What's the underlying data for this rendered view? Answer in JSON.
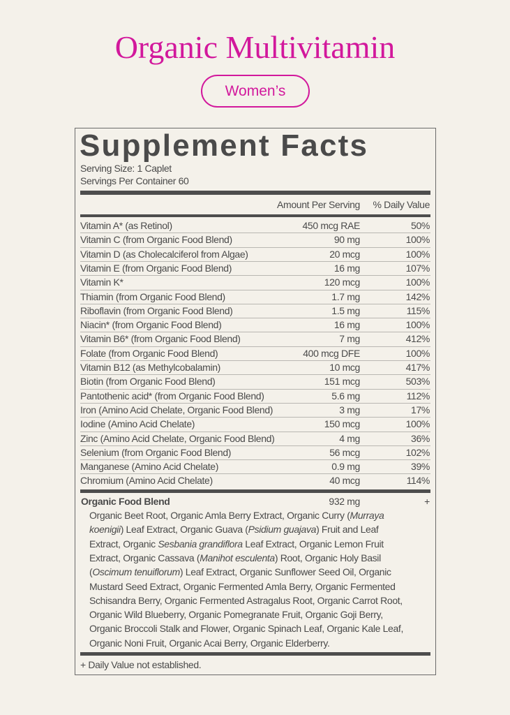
{
  "header": {
    "title": "Organic Multivitamin",
    "badge": "Women’s"
  },
  "facts": {
    "title": "Supplement Facts",
    "serving_size": "Serving Size: 1 Caplet",
    "servings_per_container": "Servings Per Container 60",
    "column_headers": [
      "Amount Per Serving",
      "% Daily Value"
    ],
    "rows": [
      [
        "Vitamin A* (as Retinol)",
        "450 mcg RAE",
        "50%"
      ],
      [
        "Vitamin C (from Organic Food Blend)",
        "90 mg",
        "100%"
      ],
      [
        "Vitamin D (as Cholecalciferol from Algae)",
        "20 mcg",
        "100%"
      ],
      [
        "Vitamin E (from Organic Food Blend)",
        "16 mg",
        "107%"
      ],
      [
        "Vitamin K*",
        "120 mcg",
        "100%"
      ],
      [
        "Thiamin (from Organic Food Blend)",
        "1.7 mg",
        "142%"
      ],
      [
        "Riboflavin (from Organic Food Blend)",
        "1.5 mg",
        "115%"
      ],
      [
        "Niacin* (from Organic Food Blend)",
        "16 mg",
        "100%"
      ],
      [
        "Vitamin B6* (from Organic Food Blend)",
        "7 mg",
        "412%"
      ],
      [
        "Folate (from Organic Food Blend)",
        "400 mcg DFE",
        "100%"
      ],
      [
        "Vitamin B12 (as Methylcobalamin)",
        "10 mcg",
        "417%"
      ],
      [
        "Biotin (from Organic Food Blend)",
        "151 mcg",
        "503%"
      ],
      [
        "Pantothenic acid* (from Organic Food Blend)",
        "5.6 mg",
        "112%"
      ],
      [
        "Iron (Amino Acid Chelate, Organic Food Blend)",
        "3 mg",
        "17%"
      ],
      [
        "Iodine (Amino Acid Chelate)",
        "150 mcg",
        "100%"
      ],
      [
        "Zinc (Amino Acid Chelate, Organic Food Blend)",
        "4 mg",
        "36%"
      ],
      [
        "Selenium (from Organic Food Blend)",
        "56 mcg",
        "102%"
      ],
      [
        "Manganese (Amino Acid Chelate)",
        "0.9 mg",
        "39%"
      ],
      [
        "Chromium (Amino Acid Chelate)",
        "40 mcg",
        "114%"
      ]
    ],
    "blend": {
      "name": "Organic Food Blend",
      "amount": "932 mg",
      "daily_value": "+",
      "lines": [
        [
          {
            "text": "Organic Beet Root, Organic Amla Berry Extract, Organic Curry ("
          },
          {
            "text": "Murraya",
            "italic": true
          }
        ],
        [
          {
            "text": "koenigii",
            "italic": true
          },
          {
            "text": ") Leaf Extract, Organic Guava ("
          },
          {
            "text": "Psidium guajava",
            "italic": true
          },
          {
            "text": ") Fruit and Leaf"
          }
        ],
        [
          {
            "text": "Extract, Organic "
          },
          {
            "text": "Sesbania grandiflora",
            "italic": true
          },
          {
            "text": " Leaf Extract, Organic Lemon Fruit"
          }
        ],
        [
          {
            "text": "Extract, Organic Cassava ("
          },
          {
            "text": "Manihot esculenta",
            "italic": true
          },
          {
            "text": ") Root, Organic Holy Basil"
          }
        ],
        [
          {
            "text": "("
          },
          {
            "text": "Oscimum tenuiflorum",
            "italic": true
          },
          {
            "text": ") Leaf Extract, Organic Sunflower Seed Oil, Organic"
          }
        ],
        [
          {
            "text": "Mustard Seed Extract, Organic Fermented Amla Berry, Organic Fermented"
          }
        ],
        [
          {
            "text": "Schisandra Berry, Organic Fermented Astragalus Root, Organic Carrot Root,"
          }
        ],
        [
          {
            "text": "Organic Wild Blueberry, Organic Pomegranate Fruit, Organic Goji Berry,"
          }
        ],
        [
          {
            "text": "Organic Broccoli Stalk and Flower, Organic Spinach Leaf, Organic Kale Leaf,"
          }
        ],
        [
          {
            "text": "Organic Noni Fruit, Organic Acai Berry, Organic Elderberry."
          }
        ]
      ]
    },
    "footnote": "+ Daily Value not established."
  }
}
